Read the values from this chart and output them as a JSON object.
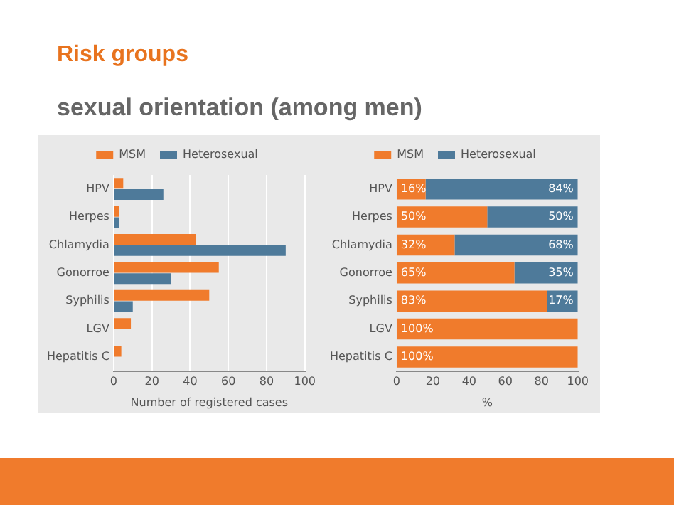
{
  "chart_data": [
    {
      "type": "bar",
      "title": "Risk groups",
      "subtitle": "sexual orientation (among men)",
      "orientation": "horizontal",
      "categories": [
        "HPV",
        "Herpes",
        "Chlamydia",
        "Gonorroe",
        "Syphilis",
        "LGV",
        "Hepatitis C"
      ],
      "series": [
        {
          "name": "MSM",
          "color": "#f07b2c",
          "values": [
            5,
            3,
            43,
            55,
            50,
            9,
            4
          ]
        },
        {
          "name": "Heterosexual",
          "color": "#4e7a9a",
          "values": [
            26,
            3,
            90,
            30,
            10,
            0,
            0
          ]
        }
      ],
      "xlim": [
        0,
        100
      ],
      "xticks": [
        0,
        20,
        40,
        60,
        80,
        100
      ],
      "xlabel": "Number of registered cases",
      "grid": "x",
      "legend": "top"
    },
    {
      "type": "bar",
      "orientation": "horizontal",
      "stacked": true,
      "categories": [
        "HPV",
        "Herpes",
        "Chlamydia",
        "Gonorroe",
        "Syphilis",
        "LGV",
        "Hepatitis C"
      ],
      "series": [
        {
          "name": "MSM",
          "color": "#f07b2c",
          "values": [
            16,
            50,
            32,
            65,
            83,
            100,
            100
          ],
          "value_labels": [
            "16%",
            "50%",
            "32%",
            "65%",
            "83%",
            "100%",
            "100%"
          ]
        },
        {
          "name": "Heterosexual",
          "color": "#4e7a9a",
          "values": [
            84,
            50,
            68,
            35,
            17,
            0,
            0
          ],
          "value_labels": [
            "84%",
            "50%",
            "68%",
            "35%",
            "17%",
            null,
            null
          ]
        }
      ],
      "xlim": [
        0,
        100
      ],
      "xticks": [
        0,
        20,
        40,
        60,
        80,
        100
      ],
      "xlabel": "%",
      "grid": false,
      "legend": "top"
    }
  ]
}
